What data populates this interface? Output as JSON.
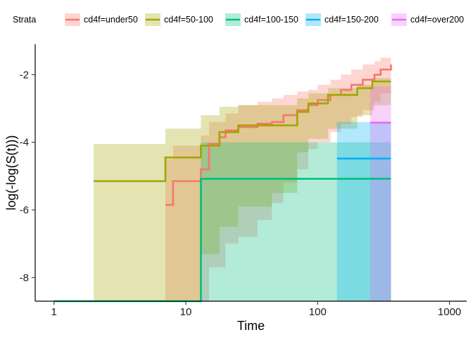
{
  "chart_data": {
    "type": "line",
    "title": "",
    "xlabel": "Time",
    "ylabel": "log(-log(S(t)))",
    "x_scale": "log10",
    "xlim": [
      0.72,
      1350
    ],
    "ylim": [
      -8.7,
      -1.1
    ],
    "x_ticks": [
      1,
      10,
      100,
      1000
    ],
    "x_tick_labels": [
      "1",
      "10",
      "100",
      "1000"
    ],
    "y_ticks": [
      -8,
      -6,
      -4,
      -2
    ],
    "y_tick_labels": [
      "-8",
      "-6",
      "-4",
      "-2"
    ],
    "grid": false,
    "legend": {
      "title": "Strata",
      "position": "top"
    },
    "series": [
      {
        "name": "cd4f=under50",
        "color": "#F8766D",
        "steps": [
          [
            7,
            -5.85
          ],
          [
            8,
            -5.15
          ],
          [
            13,
            -4.8
          ],
          [
            15,
            -4.05
          ],
          [
            18,
            -3.85
          ],
          [
            20,
            -3.65
          ],
          [
            25,
            -3.55
          ],
          [
            35,
            -3.45
          ],
          [
            45,
            -3.4
          ],
          [
            55,
            -3.2
          ],
          [
            70,
            -3.05
          ],
          [
            85,
            -2.9
          ],
          [
            100,
            -2.75
          ],
          [
            125,
            -2.6
          ],
          [
            150,
            -2.45
          ],
          [
            180,
            -2.3
          ],
          [
            220,
            -2.15
          ],
          [
            270,
            -2.0
          ],
          [
            300,
            -1.85
          ],
          [
            360,
            -1.7
          ]
        ],
        "band": [
          [
            7,
            -8.7,
            -4.5
          ],
          [
            8,
            -8.7,
            -4.1
          ],
          [
            13,
            -8.7,
            -3.8
          ],
          [
            15,
            -7.7,
            -3.4
          ],
          [
            20,
            -7.0,
            -3.15
          ],
          [
            25,
            -6.8,
            -2.9
          ],
          [
            35,
            -6.3,
            -2.8
          ],
          [
            45,
            -5.8,
            -2.7
          ],
          [
            55,
            -5.2,
            -2.6
          ],
          [
            70,
            -4.8,
            -2.5
          ],
          [
            85,
            -4.2,
            -2.45
          ],
          [
            100,
            -4.0,
            -2.3
          ],
          [
            125,
            -3.7,
            -2.15
          ],
          [
            150,
            -3.45,
            -2.0
          ],
          [
            180,
            -3.25,
            -1.85
          ],
          [
            220,
            -3.05,
            -1.7
          ],
          [
            270,
            -2.8,
            -1.6
          ],
          [
            300,
            -2.55,
            -1.5
          ],
          [
            360,
            -2.55,
            -1.5
          ]
        ]
      },
      {
        "name": "cd4f=50-100",
        "color": "#A3A500",
        "steps": [
          [
            2,
            -5.15
          ],
          [
            7,
            -4.45
          ],
          [
            13,
            -4.1
          ],
          [
            18,
            -3.7
          ],
          [
            25,
            -3.5
          ],
          [
            70,
            -3.1
          ],
          [
            85,
            -2.85
          ],
          [
            120,
            -2.6
          ],
          [
            200,
            -2.4
          ],
          [
            260,
            -2.2
          ],
          [
            360,
            -2.2
          ]
        ],
        "band": [
          [
            2,
            -8.7,
            -4.05
          ],
          [
            7,
            -8.7,
            -3.6
          ],
          [
            13,
            -7.3,
            -3.2
          ],
          [
            18,
            -6.5,
            -2.95
          ],
          [
            25,
            -5.9,
            -2.9
          ],
          [
            45,
            -5.5,
            -2.9
          ],
          [
            70,
            -4.3,
            -2.7
          ],
          [
            85,
            -3.9,
            -2.55
          ],
          [
            120,
            -3.6,
            -2.4
          ],
          [
            200,
            -3.2,
            -2.3
          ],
          [
            260,
            -2.9,
            -2.1
          ],
          [
            360,
            -2.9,
            -2.1
          ]
        ]
      },
      {
        "name": "cd4f=100-150",
        "color": "#00BF7D",
        "steps": [
          [
            1,
            -8.7
          ],
          [
            13,
            -5.08
          ],
          [
            360,
            -5.08
          ]
        ],
        "band": [
          [
            1,
            -8.7,
            -8.7
          ],
          [
            13,
            -8.7,
            -4.0
          ],
          [
            20,
            -8.7,
            -4.0
          ],
          [
            360,
            -8.7,
            -4.0
          ]
        ]
      },
      {
        "name": "cd4f=150-200",
        "color": "#00B0F6",
        "steps": [
          [
            140,
            -4.48
          ],
          [
            360,
            -4.48
          ]
        ],
        "band": [
          [
            140,
            -8.7,
            -3.4
          ],
          [
            360,
            -8.7,
            -3.4
          ]
        ]
      },
      {
        "name": "cd4f=over200",
        "color": "#E76BF3",
        "steps": [
          [
            250,
            -3.42
          ],
          [
            360,
            -3.42
          ]
        ],
        "band": [
          [
            250,
            -8.7,
            -2.35
          ],
          [
            360,
            -8.7,
            -2.35
          ]
        ]
      }
    ]
  }
}
